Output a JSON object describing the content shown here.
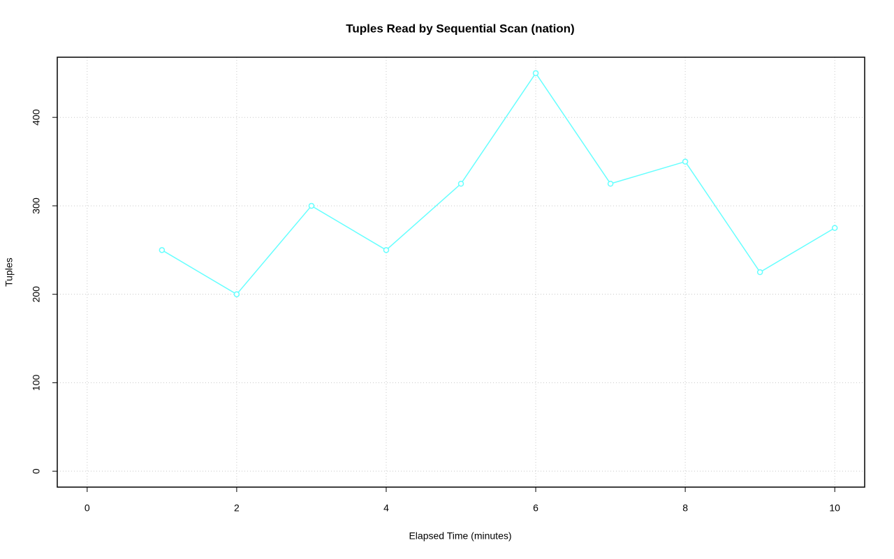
{
  "chart_data": {
    "type": "line",
    "title": "Tuples Read by Sequential Scan (nation)",
    "x_label": "Elapsed Time (minutes)",
    "y_label": "Tuples",
    "x": [
      1,
      2,
      3,
      4,
      5,
      6,
      7,
      8,
      9,
      10
    ],
    "series": [
      {
        "color": "#66ffff",
        "values": [
          250,
          200,
          300,
          250,
          325,
          450,
          325,
          350,
          225,
          275
        ]
      }
    ],
    "xlim": [
      -0.4,
      10.4
    ],
    "xticks": [
      0,
      2,
      4,
      6,
      8,
      10
    ],
    "ylim": [
      -18,
      468
    ],
    "yticks": [
      0,
      100,
      200,
      300,
      400
    ],
    "grid": true
  }
}
